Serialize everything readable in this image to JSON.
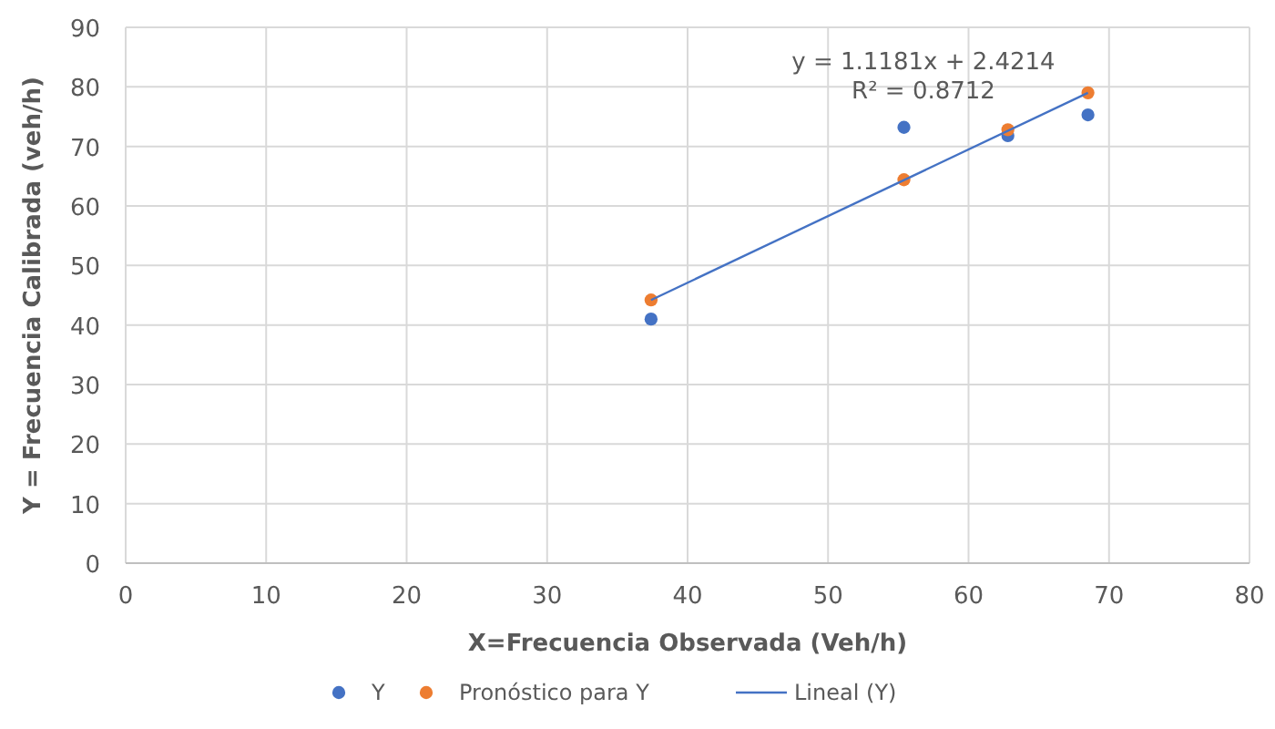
{
  "chart_data": {
    "type": "scatter",
    "xlabel": "X=Frecuencia Observada (Veh/h)",
    "ylabel": "Y = Frecuencia Calibrada (veh/h)",
    "x": [
      37.4,
      55.4,
      62.8,
      68.5
    ],
    "series": [
      {
        "name": "Y",
        "color": "#4472c4",
        "values": [
          41.0,
          73.2,
          71.8,
          75.3
        ]
      },
      {
        "name": "Pronóstico para Y",
        "color": "#ed7d31",
        "values": [
          44.2,
          64.4,
          72.8,
          79.0
        ]
      },
      {
        "name": "Lineal (Y)",
        "type": "line",
        "color": "#4472c4",
        "x": [
          37.4,
          68.5
        ],
        "values": [
          44.2,
          79.0
        ],
        "marker": "none"
      }
    ],
    "annotations": [
      "y = 1.1181x + 2.4214",
      "R² = 0.8712"
    ],
    "xlim": [
      0,
      80
    ],
    "xticks": [
      0,
      10,
      20,
      30,
      40,
      50,
      60,
      70,
      80
    ],
    "ylim": [
      0,
      90
    ],
    "yticks": [
      0,
      10,
      20,
      30,
      40,
      50,
      60,
      70,
      80,
      90
    ],
    "grid": true,
    "legend": "bottom",
    "marker": "circle"
  }
}
